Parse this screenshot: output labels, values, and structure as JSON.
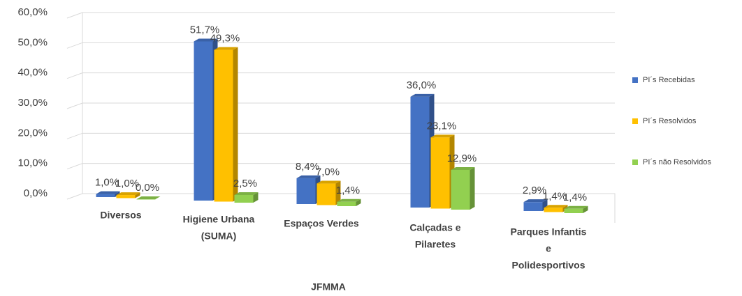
{
  "chart_data": {
    "type": "bar3d",
    "categories": [
      [
        "Diversos"
      ],
      [
        "Higiene Urbana",
        "(SUMA)"
      ],
      [
        "Espaços Verdes"
      ],
      [
        "Calçadas e",
        "Pilaretes"
      ],
      [
        "Parques Infantis",
        "e",
        "Polidesportivos"
      ]
    ],
    "series": [
      {
        "name": "PI´s Recebidas",
        "color": "#4472c4",
        "values": [
          1.0,
          51.7,
          8.4,
          36.0,
          2.9
        ],
        "value_labels": [
          "1,0%",
          "51,7%",
          "8,4%",
          "36,0%",
          "2,9%"
        ]
      },
      {
        "name": "PI´s Resolvidos",
        "color": "#ffc000",
        "values": [
          1.0,
          49.3,
          7.0,
          23.1,
          1.4
        ],
        "value_labels": [
          "1,0%",
          "49,3%",
          "7,0%",
          "23,1%",
          "1,4%"
        ]
      },
      {
        "name": "PI´s não Resolvidos",
        "color": "#92d050",
        "values": [
          0.0,
          2.5,
          1.4,
          12.9,
          1.4
        ],
        "value_labels": [
          "0,0%",
          "2,5%",
          "1,4%",
          "12,9%",
          "1,4%"
        ]
      }
    ],
    "xlabel": "JFMMA",
    "ylim": [
      0,
      60
    ],
    "yticks": [
      {
        "value": 0,
        "label": "0,0%"
      },
      {
        "value": 10,
        "label": "10,0%"
      },
      {
        "value": 20,
        "label": "20,0%"
      },
      {
        "value": 30,
        "label": "30,0%"
      },
      {
        "value": 40,
        "label": "40,0%"
      },
      {
        "value": 50,
        "label": "50,0%"
      },
      {
        "value": 60,
        "label": "60,0%"
      }
    ],
    "grid": true,
    "legend": "right"
  }
}
